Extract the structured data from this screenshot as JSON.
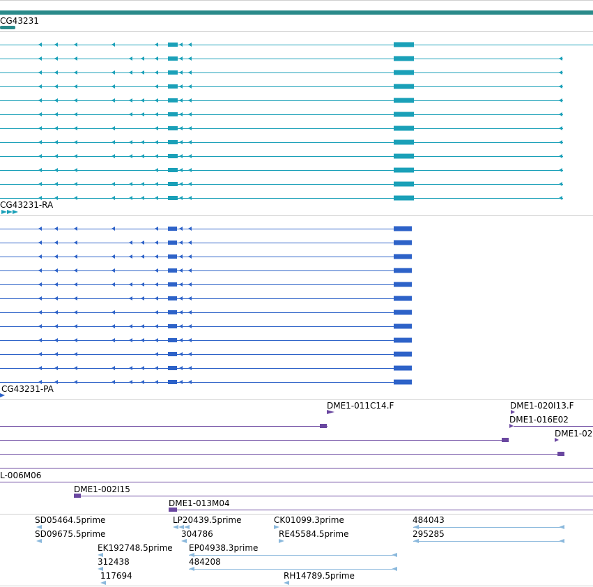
{
  "colors": {
    "gene": "#2a8a8a",
    "transcript": "#1aa0b8",
    "protein": "#2d62c8",
    "clone": "#6a47a0",
    "est": "#8ab8dc",
    "separator": "#cfcfcf"
  },
  "tracks": {
    "gene": {
      "label": "CG43231"
    },
    "transcripts": {
      "label": "CG43231-RA",
      "row_count": 12
    },
    "proteins": {
      "label": "CG43231-PA",
      "row_count": 12
    },
    "clones": {
      "labels": [
        "DME1-011C14.F",
        "DME1-020I13.F",
        "DME1-016E02",
        "DME1-02",
        "L-006M06",
        "DME1-002I15",
        "DME1-013M04"
      ]
    },
    "ests": {
      "labels": [
        "SD05464.5prime",
        "SD09675.5prime",
        "LP20439.5prime",
        "304786",
        "CK01099.3prime",
        "RE45584.5prime",
        "484043",
        "295285",
        "EK192748.5prime",
        "312438",
        "117694",
        "EP04938.3prime",
        "484208",
        "RH14789.5prime"
      ]
    }
  }
}
